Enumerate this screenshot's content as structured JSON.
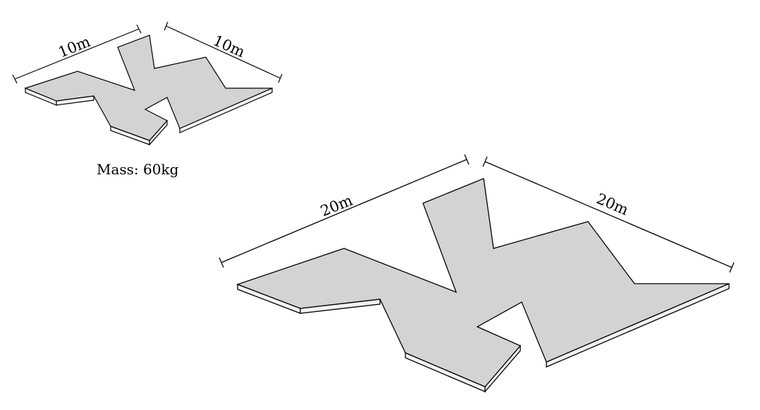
{
  "small_shape": {
    "dimension_left": "10m",
    "dimension_right": "10m",
    "mass_label": "Mass: 60kg"
  },
  "large_shape": {
    "dimension_left": "20m",
    "dimension_right": "20m"
  },
  "colors": {
    "top_face": "#d3d3d3",
    "side_face": "#f2f2f2",
    "outline": "#000000"
  }
}
